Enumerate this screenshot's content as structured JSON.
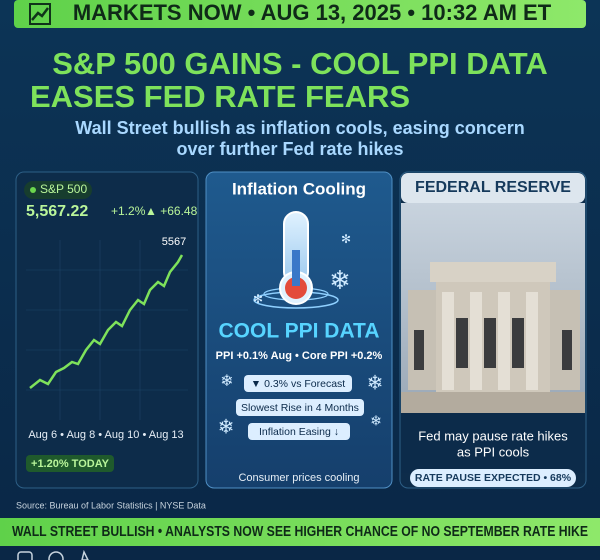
{
  "banner": "MARKETS NOW • AUG 13, 2025 • 10:32 AM ET",
  "headline": [
    "S&P 500 GAINS - COOL PPI DATA",
    "EASES FED RATE FEARS"
  ],
  "subtitle": [
    "Wall Street bullish as inflation cools, easing concern",
    "over further Fed rate hikes"
  ],
  "sp500_card": {
    "label": "S&P 500",
    "price": "5,567.22",
    "change_pct": "+1.2%",
    "change_pts": "▲ +66.48",
    "end_label": "5567",
    "dates": "Aug 6 • Aug 8 • Aug 10 • Aug 13",
    "badge": "+1.20% TODAY"
  },
  "inflation_card": {
    "title": "Inflation Cooling",
    "headline": "COOL PPI DATA",
    "detail": "PPI +0.1% Aug • Core PPI +0.2%",
    "pills": [
      "▼ 0.3% vs Forecast",
      "Slowest Rise in 4 Months",
      "Inflation Easing ↓"
    ],
    "footer": "Consumer prices cooling"
  },
  "fed_card": {
    "title": "FEDERAL RESERVE",
    "caption": [
      "Fed may pause rate hikes",
      "as PPI cools"
    ],
    "badge": "RATE PAUSE EXPECTED • 68%"
  },
  "source": "Source: Bureau of Labor Statistics | NYSE Data",
  "ticker": "WALL STREET BULLISH • ANALYSTS NOW SEE HIGHER CHANCE OF NO SEPTEMBER RATE HIKE"
}
